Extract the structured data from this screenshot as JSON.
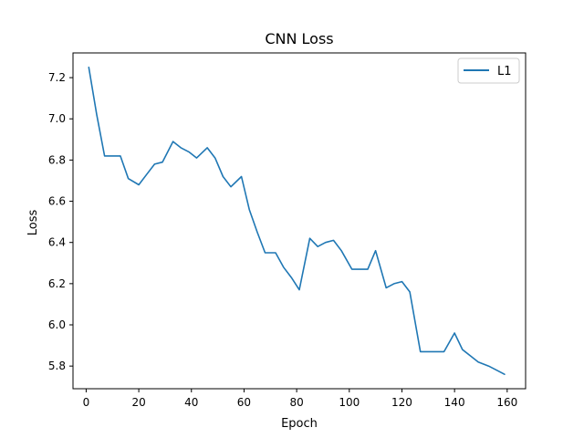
{
  "chart_data": {
    "type": "line",
    "title": "CNN Loss",
    "xlabel": "Epoch",
    "ylabel": "Loss",
    "xlim": [
      -5,
      167
    ],
    "ylim": [
      5.69,
      7.32
    ],
    "xticks": [
      0,
      20,
      40,
      60,
      80,
      100,
      120,
      140,
      160
    ],
    "xtick_labels": [
      "0",
      "20",
      "40",
      "60",
      "80",
      "100",
      "120",
      "140",
      "160"
    ],
    "yticks": [
      5.8,
      6.0,
      6.2,
      6.4,
      6.6,
      6.8,
      7.0,
      7.2
    ],
    "ytick_labels": [
      "5.8",
      "6.0",
      "6.2",
      "6.4",
      "6.6",
      "6.8",
      "7.0",
      "7.2"
    ],
    "grid": false,
    "legend_position": "top-right",
    "series": [
      {
        "name": "L1",
        "color": "#1f77b4",
        "x": [
          1,
          4,
          7,
          10,
          13,
          16,
          20,
          23,
          26,
          29,
          33,
          36,
          39,
          42,
          46,
          49,
          52,
          55,
          59,
          62,
          65,
          68,
          72,
          75,
          78,
          81,
          85,
          88,
          91,
          94,
          97,
          101,
          104,
          107,
          110,
          114,
          117,
          120,
          123,
          127,
          130,
          133,
          136,
          140,
          143,
          146,
          149,
          153,
          156,
          159
        ],
        "y": [
          7.25,
          7.02,
          6.82,
          6.82,
          6.82,
          6.71,
          6.68,
          6.73,
          6.78,
          6.79,
          6.89,
          6.86,
          6.84,
          6.81,
          6.86,
          6.81,
          6.72,
          6.67,
          6.72,
          6.56,
          6.45,
          6.35,
          6.35,
          6.28,
          6.23,
          6.17,
          6.42,
          6.38,
          6.4,
          6.41,
          6.36,
          6.27,
          6.27,
          6.27,
          6.36,
          6.18,
          6.2,
          6.21,
          6.16,
          5.87,
          5.87,
          5.87,
          5.87,
          5.96,
          5.88,
          5.85,
          5.82,
          5.8,
          5.78,
          5.76
        ]
      }
    ]
  }
}
